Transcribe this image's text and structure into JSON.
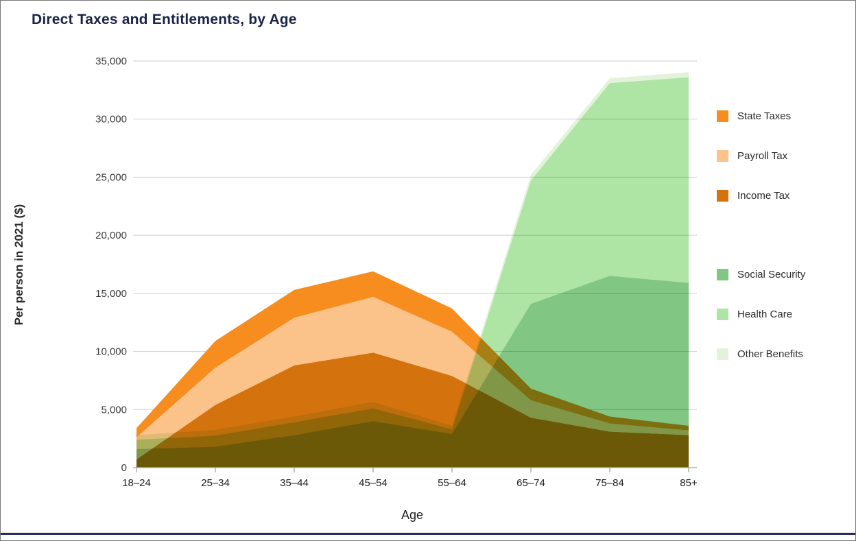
{
  "chart_data": {
    "type": "area",
    "title": "Direct Taxes and Entitlements, by Age",
    "xlabel": "Age",
    "ylabel": "Per person in 2021 ($)",
    "categories": [
      "18–24",
      "25–34",
      "35–44",
      "45–54",
      "55–64",
      "65–74",
      "75–84",
      "85+"
    ],
    "ylim": [
      0,
      35000
    ],
    "y_ticks": [
      0,
      5000,
      10000,
      15000,
      20000,
      25000,
      30000,
      35000
    ],
    "y_tick_labels": [
      "0",
      "5,000",
      "10,000",
      "15,000",
      "20,000",
      "25,000",
      "30,000",
      "35,000"
    ],
    "grid": true,
    "legend_position": "right",
    "groups": [
      {
        "name": "taxes",
        "blend": "normal",
        "series": [
          {
            "name": "Income Tax",
            "color": "#D4720E",
            "values": [
              700,
              5400,
              8800,
              9900,
              7900,
              4300,
              3100,
              2800
            ]
          },
          {
            "name": "Payroll Tax",
            "color": "#FBC38A",
            "values": [
              1900,
              3200,
              4100,
              4800,
              3800,
              1500,
              700,
              400
            ]
          },
          {
            "name": "State Taxes",
            "color": "#F68D1E",
            "values": [
              800,
              2300,
              2400,
              2200,
              2000,
              1000,
              600,
              400
            ]
          }
        ]
      },
      {
        "name": "entitlements",
        "blend": "multiply",
        "series": [
          {
            "name": "Social Security",
            "color": "#82C684",
            "values": [
              1600,
              1800,
              2800,
              4000,
              2900,
              14100,
              16500,
              15900
            ]
          },
          {
            "name": "Health Care",
            "color": "#AEE5A4",
            "values": [
              800,
              950,
              1100,
              1100,
              400,
              10600,
              16600,
              17700
            ]
          },
          {
            "name": "Other Benefits",
            "color": "#E2F3D9",
            "values": [
              400,
              500,
              500,
              550,
              300,
              500,
              400,
              450
            ]
          }
        ]
      }
    ],
    "legend": {
      "groups": [
        {
          "items": [
            {
              "label": "State Taxes",
              "color": "#F68D1E"
            },
            {
              "label": "Payroll Tax",
              "color": "#FBC38A"
            },
            {
              "label": "Income Tax",
              "color": "#D4720E"
            }
          ]
        },
        {
          "items": [
            {
              "label": "Social Security",
              "color": "#82C684"
            },
            {
              "label": "Health Care",
              "color": "#AEE5A4"
            },
            {
              "label": "Other Benefits",
              "color": "#E2F3D9"
            }
          ]
        }
      ]
    },
    "colors": {
      "title_text": "#1B2447",
      "axis_text": "#3A3A3A",
      "gridline": "#CFCFCF",
      "footer_rule": "#232B5C"
    }
  }
}
